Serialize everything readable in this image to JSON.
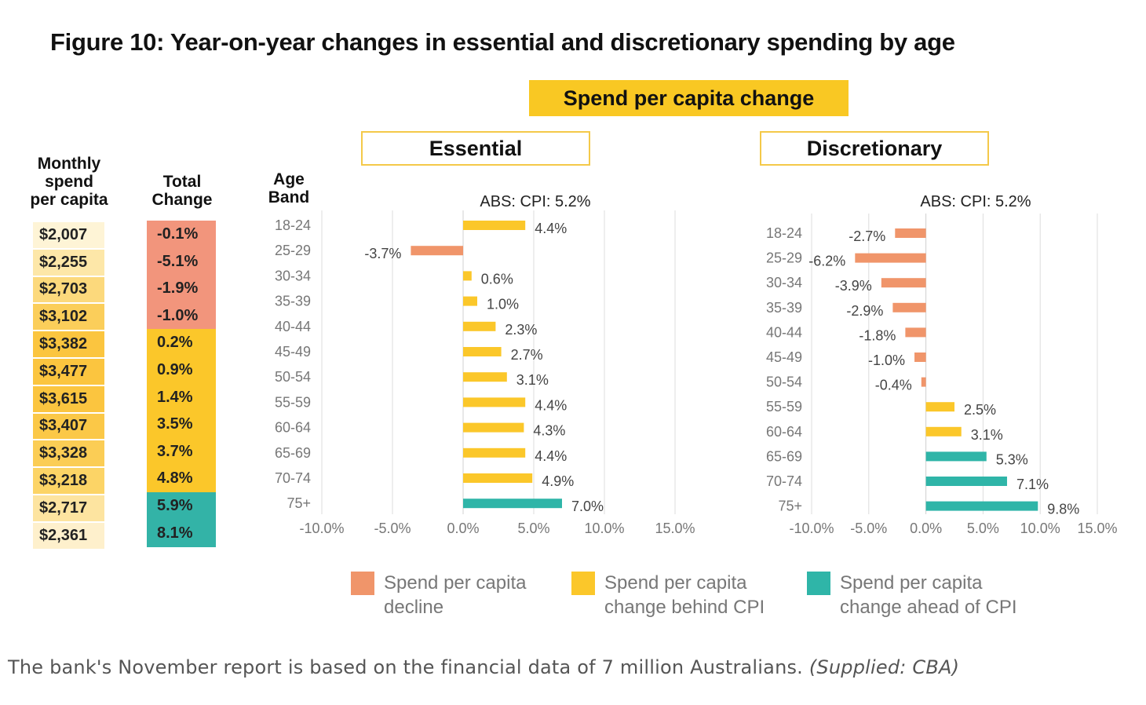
{
  "figure": {
    "title": "Figure 10: Year-on-year changes in essential and discretionary spending by age",
    "banner": "Spend per capita change"
  },
  "table": {
    "monthly_header_lines": [
      "Monthly",
      "spend",
      "per capita"
    ],
    "total_header_lines": [
      "Total",
      "Change"
    ],
    "age_header_lines": [
      "Age",
      "Band"
    ],
    "monthly_spend": [
      "$2,007",
      "$2,255",
      "$2,703",
      "$3,102",
      "$3,382",
      "$3,477",
      "$3,615",
      "$3,407",
      "$3,328",
      "$3,218",
      "$2,717",
      "$2,361"
    ],
    "monthly_colors": [
      "#fef4d6",
      "#fde7a8",
      "#fcd97c",
      "#fbce5a",
      "#fbc53f",
      "#fbc53f",
      "#fbc53f",
      "#fbc847",
      "#fbcd55",
      "#fcd466",
      "#fde4a0",
      "#fef0cc"
    ],
    "total_change": [
      "-0.1%",
      "-5.1%",
      "-1.9%",
      "-1.0%",
      "0.2%",
      "0.9%",
      "1.4%",
      "3.5%",
      "3.7%",
      "4.8%",
      "5.9%",
      "8.1%"
    ],
    "total_change_category": [
      "decline",
      "decline",
      "decline",
      "decline",
      "behind",
      "behind",
      "behind",
      "behind",
      "behind",
      "behind",
      "ahead",
      "ahead"
    ]
  },
  "colors": {
    "decline": "#f0956a",
    "behind": "#fbc72a",
    "ahead": "#2fb5a8",
    "decline_cell": "#f2957c",
    "behind_cell": "#fbc72a",
    "ahead_cell": "#33b3a7"
  },
  "chart_data": [
    {
      "type": "bar",
      "orientation": "horizontal",
      "title": "Essential",
      "annotation": "ABS: CPI: 5.2%",
      "categories": [
        "18-24",
        "25-29",
        "30-34",
        "35-39",
        "40-44",
        "45-49",
        "50-54",
        "55-59",
        "60-64",
        "65-69",
        "70-74",
        "75+"
      ],
      "values": [
        4.4,
        -3.7,
        0.6,
        1.0,
        2.3,
        2.7,
        3.1,
        4.4,
        4.3,
        4.4,
        4.9,
        7.0
      ],
      "value_labels": [
        "4.4%",
        "-3.7%",
        "0.6%",
        "1.0%",
        "2.3%",
        "2.7%",
        "3.1%",
        "4.4%",
        "4.3%",
        "4.4%",
        "4.9%",
        "7.0%"
      ],
      "category_of_bar": [
        "behind",
        "decline",
        "behind",
        "behind",
        "behind",
        "behind",
        "behind",
        "behind",
        "behind",
        "behind",
        "behind",
        "ahead"
      ],
      "xlim": [
        -10,
        15
      ],
      "xticks": [
        -10,
        -5,
        0,
        5,
        10,
        15
      ],
      "xtick_labels": [
        "-10.0%",
        "-5.0%",
        "0.0%",
        "5.0%",
        "10.0%",
        "15.0%"
      ],
      "grid": true
    },
    {
      "type": "bar",
      "orientation": "horizontal",
      "title": "Discretionary",
      "annotation": "ABS: CPI: 5.2%",
      "categories": [
        "18-24",
        "25-29",
        "30-34",
        "35-39",
        "40-44",
        "45-49",
        "50-54",
        "55-59",
        "60-64",
        "65-69",
        "70-74",
        "75+"
      ],
      "values": [
        -2.7,
        -6.2,
        -3.9,
        -2.9,
        -1.8,
        -1.0,
        -0.4,
        2.5,
        3.1,
        5.3,
        7.1,
        9.8
      ],
      "value_labels": [
        "-2.7%",
        "-6.2%",
        "-3.9%",
        "-2.9%",
        "-1.8%",
        "-1.0%",
        "-0.4%",
        "2.5%",
        "3.1%",
        "5.3%",
        "7.1%",
        "9.8%"
      ],
      "category_of_bar": [
        "decline",
        "decline",
        "decline",
        "decline",
        "decline",
        "decline",
        "decline",
        "behind",
        "behind",
        "ahead",
        "ahead",
        "ahead"
      ],
      "xlim": [
        -10,
        15
      ],
      "xticks": [
        -10,
        -5,
        0,
        5,
        10,
        15
      ],
      "xtick_labels": [
        "-10.0%",
        "-5.0%",
        "0.0%",
        "5.0%",
        "10.0%",
        "15.0%"
      ],
      "grid": true
    }
  ],
  "legend": [
    {
      "key": "decline",
      "lines": [
        "Spend per capita",
        "decline"
      ]
    },
    {
      "key": "behind",
      "lines": [
        "Spend per capita",
        "change behind CPI"
      ]
    },
    {
      "key": "ahead",
      "lines": [
        "Spend per capita",
        "change ahead of CPI"
      ]
    }
  ],
  "caption": {
    "text": "The bank's November report is based on the financial data of 7 million Australians.",
    "source": "(Supplied: CBA)"
  }
}
